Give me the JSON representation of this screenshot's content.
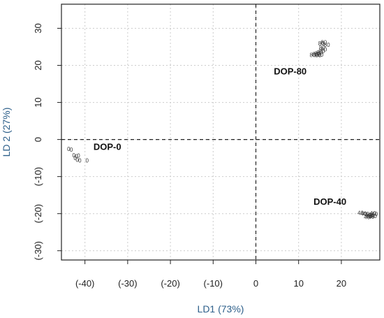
{
  "chart_data": {
    "type": "scatter",
    "xlabel": "LD1 (73%)",
    "ylabel": "LD 2 (27%)",
    "xlim": [
      -45.5,
      29
    ],
    "ylim": [
      -32.5,
      36.5
    ],
    "x_ticks": [
      {
        "value": -40,
        "label": "(-40)"
      },
      {
        "value": -30,
        "label": "(-30)"
      },
      {
        "value": -20,
        "label": "(-20)"
      },
      {
        "value": -10,
        "label": "(-10)"
      },
      {
        "value": 0,
        "label": "0"
      },
      {
        "value": 10,
        "label": "10"
      },
      {
        "value": 20,
        "label": "20"
      }
    ],
    "y_ticks": [
      {
        "value": -30,
        "label": "(-30)"
      },
      {
        "value": -20,
        "label": "(-20)"
      },
      {
        "value": -10,
        "label": "(-10)"
      },
      {
        "value": 0,
        "label": "0"
      },
      {
        "value": 10,
        "label": "10"
      },
      {
        "value": 20,
        "label": "20"
      },
      {
        "value": 30,
        "label": "30"
      }
    ],
    "grid": true,
    "label_color": "#2d5f8a",
    "groups": [
      {
        "name": "DOP-0",
        "point_label": "0",
        "label_at": [
          -38,
          -2.8
        ],
        "points": [
          [
            -43.8,
            -2.5
          ],
          [
            -43.2,
            -2.7
          ],
          [
            -42.6,
            -4.2
          ],
          [
            -42.0,
            -4.5
          ],
          [
            -41.5,
            -4.3
          ],
          [
            -42.3,
            -5.0
          ],
          [
            -41.8,
            -5.4
          ],
          [
            -41.2,
            -5.6
          ],
          [
            -39.5,
            -5.6
          ]
        ]
      },
      {
        "name": "DOP-40",
        "point_label": "40",
        "label_at": [
          13.5,
          -17.6
        ],
        "points": [
          [
            24.5,
            -19.8
          ],
          [
            25.2,
            -20.0
          ],
          [
            25.8,
            -20.1
          ],
          [
            26.3,
            -20.3
          ],
          [
            26.7,
            -20.4
          ],
          [
            27.0,
            -20.2
          ],
          [
            27.4,
            -19.9
          ],
          [
            26.4,
            -20.7
          ],
          [
            27.0,
            -20.8
          ],
          [
            27.6,
            -20.6
          ],
          [
            26.0,
            -20.9
          ],
          [
            27.8,
            -20.1
          ]
        ]
      },
      {
        "name": "DOP-80",
        "point_label": "80",
        "label_at": [
          4.2,
          17.6
        ],
        "points": [
          [
            13.3,
            22.8
          ],
          [
            13.9,
            23.0
          ],
          [
            14.4,
            23.2
          ],
          [
            14.9,
            23.5
          ],
          [
            15.4,
            23.9
          ],
          [
            15.9,
            24.3
          ],
          [
            14.6,
            22.7
          ],
          [
            15.1,
            22.9
          ],
          [
            15.5,
            24.8
          ],
          [
            15.3,
            25.9
          ],
          [
            15.9,
            26.2
          ],
          [
            16.6,
            25.6
          ]
        ]
      }
    ]
  }
}
